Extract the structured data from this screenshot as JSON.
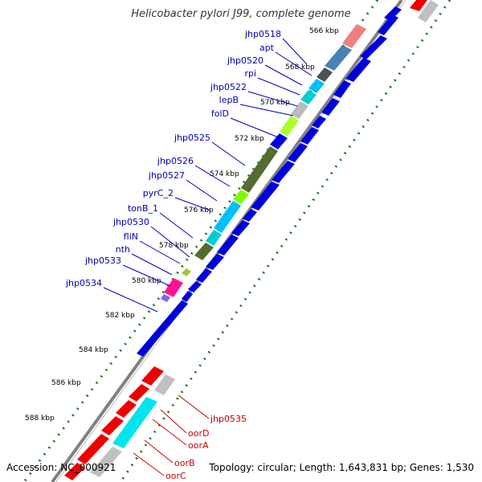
{
  "title": "Helicobacter pylori J99, complete genome",
  "accession_label": "Accession: NC_000921",
  "summary_label": "Topology: circular; Length: 1,643,831 bp; Genes: 1,530",
  "ticks": [
    "566 kbp",
    "568 kbp",
    "570 kbp",
    "572 kbp",
    "574 kbp",
    "576 kbp",
    "578 kbp",
    "580 kbp",
    "582 kbp",
    "584 kbp",
    "586 kbp",
    "588 kbp"
  ],
  "genes_forward": [
    "jhp0518",
    "apt",
    "jhp0520",
    "rpi",
    "jhp0522",
    "lepB",
    "folD",
    "jhp0525",
    "jhp0526",
    "jhp0527",
    "pyrC_2",
    "tonB_1",
    "jhp0530",
    "fliN",
    "nth",
    "jhp0533",
    "jhp0534"
  ],
  "genes_reverse": [
    "jhp0535",
    "oorD",
    "oorA",
    "oorB",
    "oorC"
  ],
  "colors": {
    "forward": "#0000dd",
    "reverse": "#ee0000",
    "label_forward": "#0000bb",
    "label_reverse": "#cc0000",
    "backbone": "#808080",
    "dots": "#1a7a1a"
  }
}
